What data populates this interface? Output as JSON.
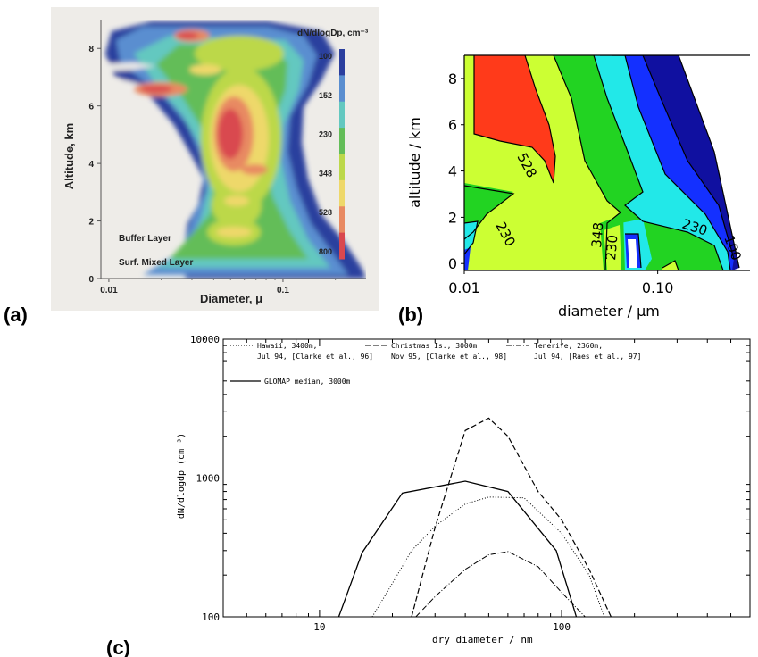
{
  "panels": {
    "a": "(a)",
    "b": "(b)",
    "c": "(c)"
  },
  "chart_data": [
    {
      "type": "heatmap",
      "id": "a",
      "title": "dN/dlogDp, cm⁻³",
      "xlabel": "Diameter, μ",
      "ylabel": "Altitude, km",
      "x_scale": "log",
      "xlim": [
        0.009,
        0.3
      ],
      "ylim": [
        0,
        9
      ],
      "xticks": [
        {
          "v": 0.01,
          "label": "0.01"
        },
        {
          "v": 0.1,
          "label": "0.1"
        }
      ],
      "yticks": [
        0,
        2,
        4,
        6,
        8
      ],
      "colorbar": {
        "levels": [
          100,
          152,
          230,
          348,
          528,
          800
        ],
        "labels": [
          "100",
          "152",
          "230",
          "348",
          "528",
          "800"
        ]
      },
      "annotations": [
        "Buffer Layer",
        "Surf. Mixed Layer"
      ],
      "colors": [
        "#2b3f9e",
        "#5a8ed0",
        "#63c8c0",
        "#63bd58",
        "#bcd84a",
        "#eed86a",
        "#e88a62",
        "#d9484f"
      ]
    },
    {
      "type": "heatmap",
      "id": "b",
      "xlabel": "diameter / μm",
      "ylabel": "altitude / km",
      "x_scale": "log",
      "xlim": [
        0.01,
        0.3
      ],
      "ylim": [
        -0.3,
        9
      ],
      "xticks": [
        {
          "v": 0.01,
          "label": "0.01"
        },
        {
          "v": 0.1,
          "label": "0.10"
        }
      ],
      "yticks": [
        0,
        2,
        4,
        6,
        8
      ],
      "contour_labels": [
        "528",
        "348",
        "230",
        "230",
        "230",
        "100"
      ],
      "colors": {
        "red": "#ff3a1a",
        "yellow": "#ccff33",
        "green": "#22d322",
        "cyan": "#22e8e8",
        "blue": "#1430ff",
        "dblue": "#1010a0"
      }
    },
    {
      "type": "line",
      "id": "c",
      "xlabel": "dry diameter / nm",
      "ylabel": "dN/dlogdp (cm⁻³)",
      "x_scale": "log",
      "y_scale": "log",
      "xlim": [
        4,
        600
      ],
      "ylim": [
        100,
        10000
      ],
      "xticks": [
        {
          "v": 10,
          "label": "10"
        },
        {
          "v": 100,
          "label": "100"
        }
      ],
      "yticks": [
        {
          "v": 100,
          "label": "100"
        },
        {
          "v": 1000,
          "label": "1000"
        },
        {
          "v": 10000,
          "label": "10000"
        }
      ],
      "legend_lines": [
        "Hawaii, 3400m,",
        "Jul 94, [Clarke et al., 96]",
        "Christmas Is., 3000m",
        "Nov 95, [Clarke et al., 98]",
        "Tenerife, 2360m,",
        "Jul 94, [Raes et al., 97]",
        "GLOMAP median, 3000m"
      ],
      "series": [
        {
          "style": "dotted",
          "points": [
            [
              16.5,
              100
            ],
            [
              19,
              150
            ],
            [
              24,
              300
            ],
            [
              30,
              450
            ],
            [
              40,
              650
            ],
            [
              50,
              730
            ],
            [
              70,
              720
            ],
            [
              100,
              400
            ],
            [
              130,
              200
            ],
            [
              150,
              100
            ]
          ]
        },
        {
          "style": "dashed",
          "points": [
            [
              24,
              100
            ],
            [
              30,
              440
            ],
            [
              40,
              2200
            ],
            [
              50,
              2700
            ],
            [
              60,
              2000
            ],
            [
              80,
              800
            ],
            [
              100,
              500
            ],
            [
              130,
              220
            ],
            [
              160,
              100
            ]
          ]
        },
        {
          "style": "dashdot",
          "points": [
            [
              25,
              100
            ],
            [
              30,
              140
            ],
            [
              40,
              220
            ],
            [
              50,
              280
            ],
            [
              60,
              295
            ],
            [
              80,
              230
            ],
            [
              100,
              150
            ],
            [
              125,
              100
            ]
          ]
        },
        {
          "style": "solid",
          "points": [
            [
              12,
              100
            ],
            [
              15,
              290
            ],
            [
              22,
              780
            ],
            [
              40,
              950
            ],
            [
              60,
              800
            ],
            [
              95,
              300
            ],
            [
              110,
              130
            ],
            [
              115,
              100
            ]
          ]
        }
      ]
    }
  ]
}
